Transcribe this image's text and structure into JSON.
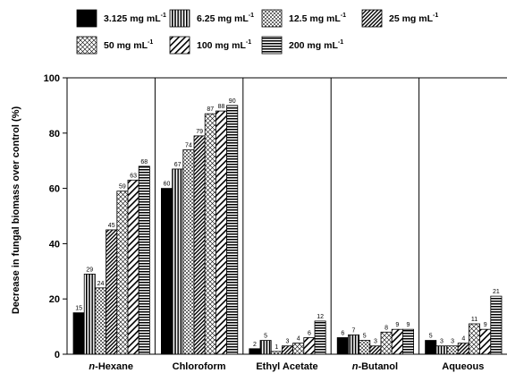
{
  "chart_data": {
    "type": "bar",
    "ylabel": "Decrease in fungal biomass over control (%)",
    "ylim": [
      0,
      100
    ],
    "yticks": [
      0,
      20,
      40,
      60,
      80,
      100
    ],
    "grid": false,
    "legend_position": "top",
    "categories": [
      {
        "prefix": "n",
        "name": "-Hexane"
      },
      {
        "prefix": "",
        "name": "Chloroform"
      },
      {
        "prefix": "",
        "name": "Ethyl Acetate"
      },
      {
        "prefix": "n",
        "name": "-Butanol"
      },
      {
        "prefix": "",
        "name": "Aqueous"
      }
    ],
    "series": [
      {
        "name": "3.125 mg mL",
        "sup": "-1",
        "pattern": "solid",
        "values": [
          15,
          60,
          2,
          6,
          5
        ]
      },
      {
        "name": "6.25 mg mL",
        "sup": "-1",
        "pattern": "vertical",
        "values": [
          29,
          67,
          5,
          7,
          3
        ]
      },
      {
        "name": "12.5 mg mL",
        "sup": "-1",
        "pattern": "dots",
        "values": [
          24,
          74,
          1,
          5,
          3
        ]
      },
      {
        "name": "25 mg mL",
        "sup": "-1",
        "pattern": "diagonal-dense",
        "values": [
          45,
          79,
          3,
          3,
          4
        ]
      },
      {
        "name": "50 mg mL",
        "sup": "-1",
        "pattern": "crosshatch",
        "values": [
          59,
          87,
          4,
          8,
          11
        ]
      },
      {
        "name": "100 mg mL",
        "sup": "-1",
        "pattern": "diagonal-wide",
        "values": [
          63,
          88,
          6,
          9,
          9
        ]
      },
      {
        "name": "200 mg mL",
        "sup": "-1",
        "pattern": "horizontal",
        "values": [
          68,
          90,
          12,
          9,
          21
        ]
      }
    ]
  }
}
